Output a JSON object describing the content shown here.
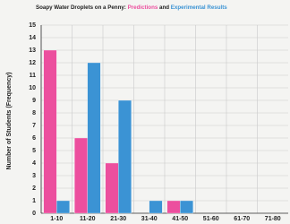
{
  "chart_data": {
    "type": "bar",
    "title": "Soapy Water Droplets on a Penny:",
    "legend_joiner": "and",
    "y_label": "Number of Students (Frequency)",
    "categories": [
      "1-10",
      "11-20",
      "21-30",
      "31-40",
      "41-50",
      "51-60",
      "61-70",
      "71-80"
    ],
    "series": [
      {
        "name": "Predictions",
        "color": "#ec4f9e",
        "values": [
          13,
          6,
          4,
          0,
          1,
          0,
          0,
          0
        ]
      },
      {
        "name": "Experimental Results",
        "color": "#3b93d4",
        "values": [
          1,
          12,
          9,
          1,
          1,
          0,
          0,
          0
        ]
      }
    ],
    "ylim": [
      0,
      15
    ],
    "yticks": [
      0,
      1,
      2,
      3,
      4,
      5,
      6,
      7,
      8,
      9,
      10,
      11,
      12,
      13,
      14,
      15
    ],
    "grid": true
  }
}
